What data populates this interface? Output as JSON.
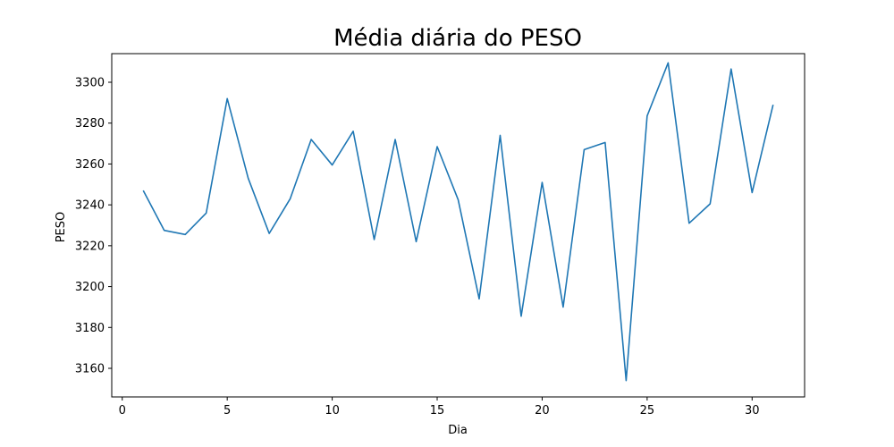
{
  "chart_data": {
    "type": "line",
    "title": "Média diária do PESO",
    "xlabel": "Dia",
    "ylabel": "PESO",
    "xlim": [
      -0.5,
      32.5
    ],
    "ylim": [
      3146,
      3314
    ],
    "xticks": [
      0,
      5,
      10,
      15,
      20,
      25,
      30
    ],
    "yticks": [
      3160,
      3180,
      3200,
      3220,
      3240,
      3260,
      3280,
      3300
    ],
    "grid": false,
    "series": [
      {
        "name": "PESO",
        "color": "#1f77b4",
        "x": [
          1,
          2,
          3,
          4,
          5,
          6,
          7,
          8,
          9,
          10,
          11,
          12,
          13,
          14,
          15,
          16,
          17,
          18,
          19,
          20,
          21,
          22,
          23,
          24,
          25,
          26,
          27,
          28,
          29,
          30,
          31
        ],
        "y": [
          3247,
          3227.5,
          3225.5,
          3236,
          3292,
          3253,
          3226,
          3243,
          3272,
          3259.5,
          3276,
          3223,
          3272,
          3222,
          3268.5,
          3242.5,
          3194,
          3274,
          3185.5,
          3251,
          3190,
          3267,
          3270.5,
          3154,
          3283.5,
          3309.5,
          3231,
          3240.5,
          3306.5,
          3246,
          3289
        ]
      }
    ]
  }
}
